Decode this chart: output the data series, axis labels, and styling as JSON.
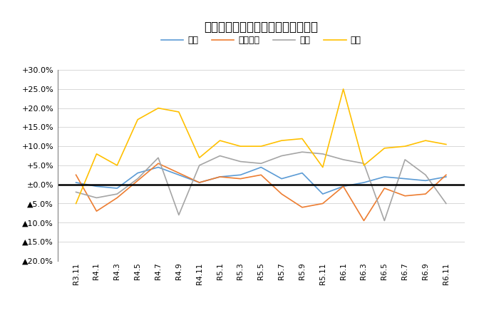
{
  "title": "米消費量・前年同月比増減率の推移",
  "legend": [
    "合計",
    "家庭内食",
    "中食",
    "外食"
  ],
  "colors": [
    "#5B9BD5",
    "#ED7D31",
    "#A5A5A5",
    "#FFC000"
  ],
  "x_labels": [
    "R3.11",
    "R4.1",
    "R4.3",
    "R4.5",
    "R4.7",
    "R4.9",
    "R4.11",
    "R5.1",
    "R5.3",
    "R5.5",
    "R5.7",
    "R5.9",
    "R5.11",
    "R6.1",
    "R6.3",
    "R6.5",
    "R6.7",
    "R6.9",
    "R6.11"
  ],
  "gokei": [
    0.5,
    -0.5,
    -1.0,
    3.0,
    4.5,
    2.5,
    0.5,
    2.0,
    2.5,
    4.5,
    1.5,
    3.0,
    -2.5,
    -0.5,
    0.5,
    2.0,
    1.5,
    1.0,
    2.0
  ],
  "katei": [
    2.5,
    -7.0,
    -3.5,
    1.0,
    5.5,
    3.0,
    0.5,
    2.0,
    1.5,
    2.5,
    -2.5,
    -6.0,
    -5.0,
    -0.5,
    -9.5,
    -1.0,
    -3.0,
    -2.5,
    2.5
  ],
  "chushoku": [
    -2.0,
    -3.5,
    -2.5,
    1.5,
    7.0,
    -8.0,
    5.0,
    7.5,
    6.0,
    5.5,
    7.5,
    8.5,
    8.0,
    6.5,
    5.5,
    -9.5,
    6.5,
    2.5,
    -5.0
  ],
  "gaishoku": [
    -5.0,
    8.0,
    5.0,
    17.0,
    20.0,
    19.0,
    7.0,
    11.5,
    10.0,
    10.0,
    11.5,
    12.0,
    4.5,
    25.0,
    5.0,
    9.5,
    10.0,
    11.5,
    10.5
  ],
  "ylim": [
    -20.0,
    30.0
  ],
  "yticks": [
    -20,
    -15,
    -10,
    -5,
    0,
    5,
    10,
    15,
    20,
    25,
    30
  ]
}
